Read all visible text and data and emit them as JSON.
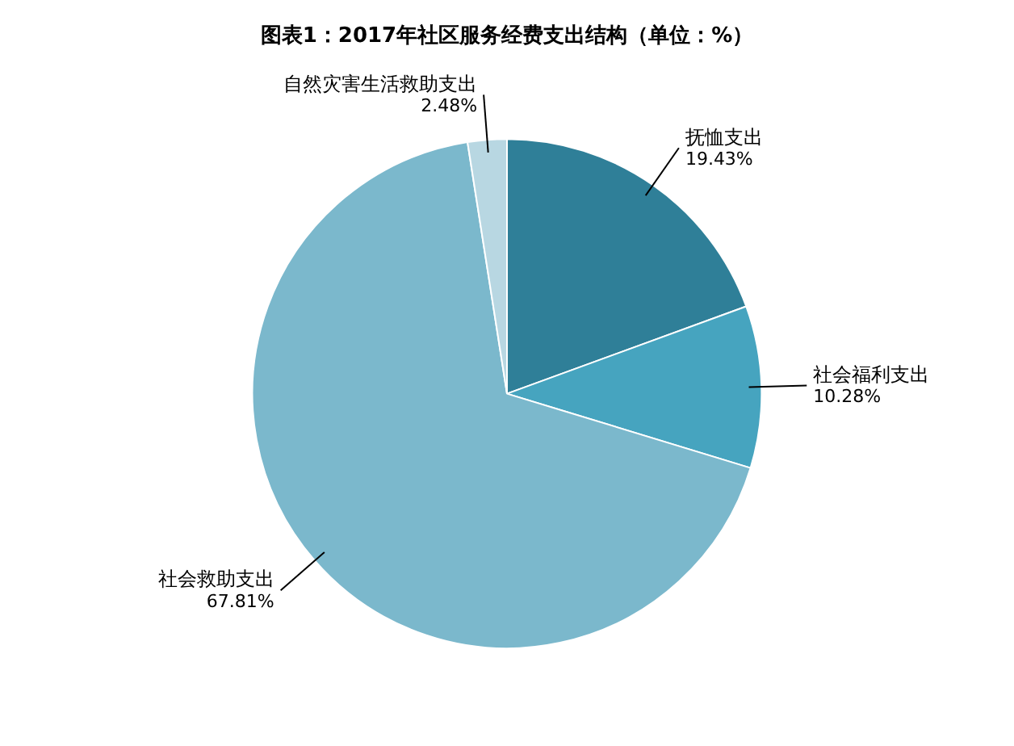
{
  "chart_data": {
    "type": "pie",
    "title": "图表1：2017年社区服务经费支出结构（单位：%）",
    "categories": [
      "抚恤支出",
      "社会福利支出",
      "社会救助支出",
      "自然灾害生活救助支出"
    ],
    "values": [
      19.43,
      10.28,
      67.81,
      2.48
    ],
    "colors": [
      "#2f7f98",
      "#46a4bf",
      "#7bb8cc",
      "#b8d7e2"
    ],
    "value_labels": [
      "19.43%",
      "10.28%",
      "67.81%",
      "2.48%"
    ],
    "legend": false
  }
}
